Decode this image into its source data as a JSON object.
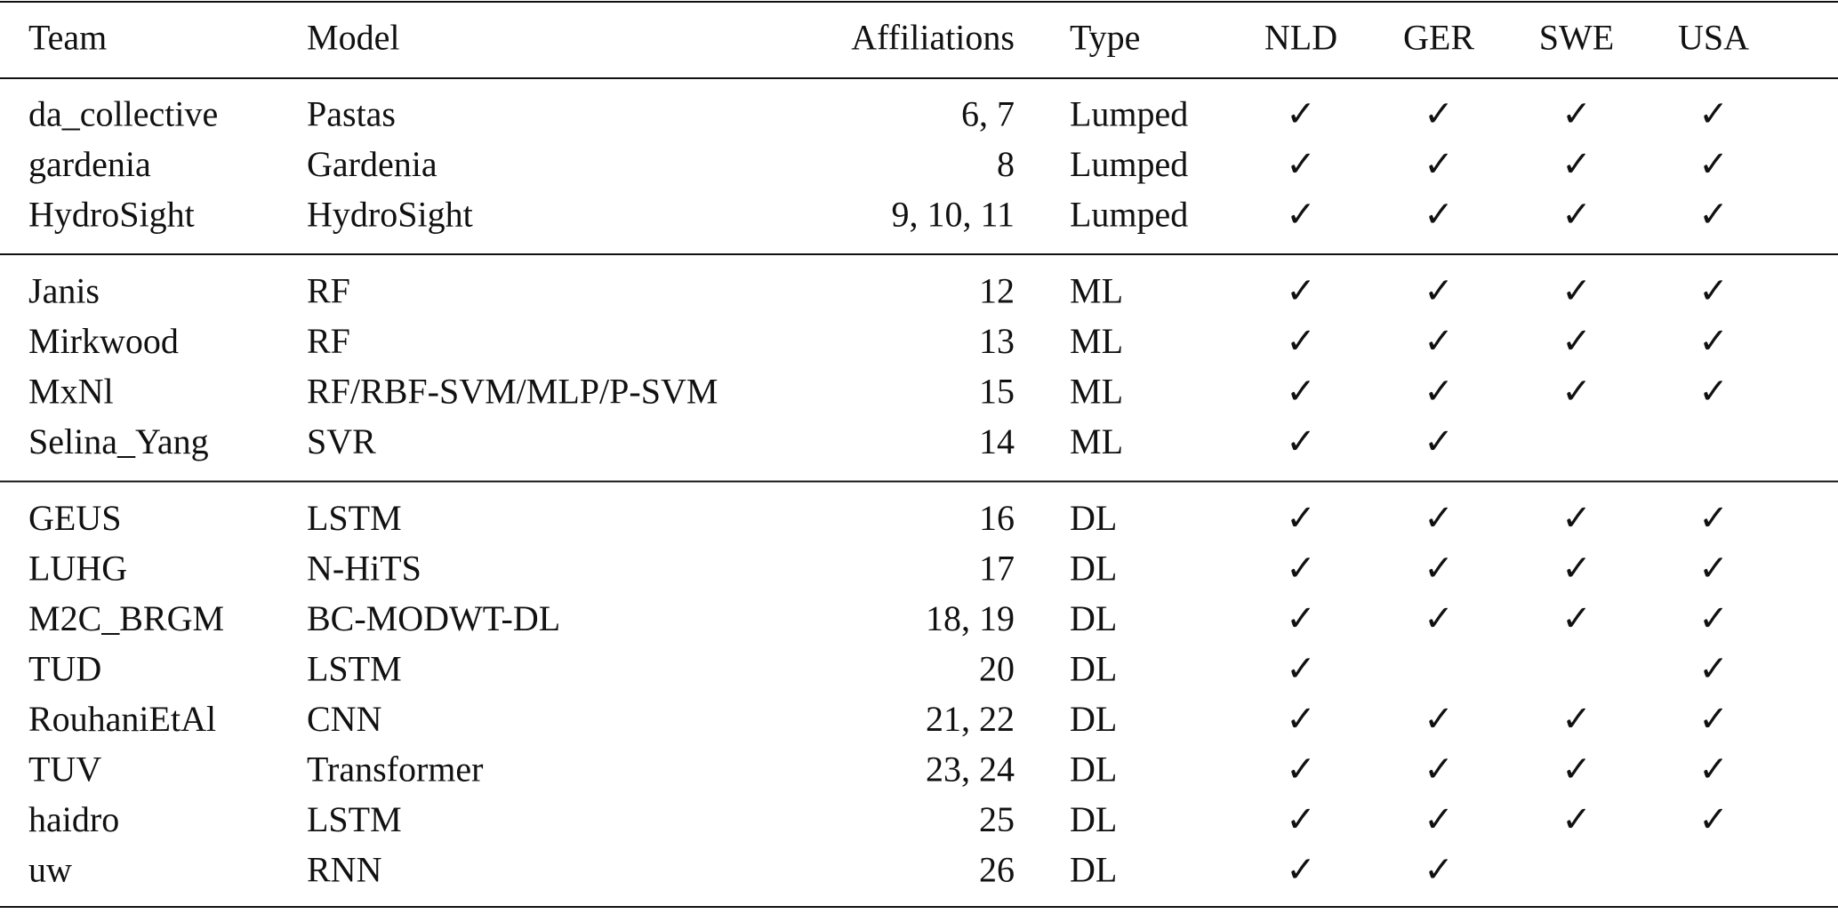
{
  "table": {
    "header": [
      "Team",
      "Model",
      "Affiliations",
      "Type",
      "NLD",
      "GER",
      "SWE",
      "USA"
    ],
    "groups": [
      [
        [
          "da_collective",
          "Pastas",
          "6, 7",
          "Lumped",
          "✓",
          "✓",
          "✓",
          "✓"
        ],
        [
          "gardenia",
          "Gardenia",
          "8",
          "Lumped",
          "✓",
          "✓",
          "✓",
          "✓"
        ],
        [
          "HydroSight",
          "HydroSight",
          "9, 10, 11",
          "Lumped",
          "✓",
          "✓",
          "✓",
          "✓"
        ]
      ],
      [
        [
          "Janis",
          "RF",
          "12",
          "ML",
          "✓",
          "✓",
          "✓",
          "✓"
        ],
        [
          "Mirkwood",
          "RF",
          "13",
          "ML",
          "✓",
          "✓",
          "✓",
          "✓"
        ],
        [
          "MxNl",
          "RF/RBF-SVM/MLP/P-SVM",
          "15",
          "ML",
          "✓",
          "✓",
          "✓",
          "✓"
        ],
        [
          "Selina_Yang",
          "SVR",
          "14",
          "ML",
          "✓",
          "✓",
          null,
          null
        ]
      ],
      [
        [
          "GEUS",
          "LSTM",
          "16",
          "DL",
          "✓",
          "✓",
          "✓",
          "✓"
        ],
        [
          "LUHG",
          "N-HiTS",
          "17",
          "DL",
          "✓",
          "✓",
          "✓",
          "✓"
        ],
        [
          "M2C_BRGM",
          "BC-MODWT-DL",
          "18, 19",
          "DL",
          "✓",
          "✓",
          "✓",
          "✓"
        ],
        [
          "TUD",
          "LSTM",
          "20",
          "DL",
          "✓",
          null,
          null,
          "✓"
        ],
        [
          "RouhaniEtAl",
          "CNN",
          "21, 22",
          "DL",
          "✓",
          "✓",
          "✓",
          "✓"
        ],
        [
          "TUV",
          "Transformer",
          "23, 24",
          "DL",
          "✓",
          "✓",
          "✓",
          "✓"
        ],
        [
          "haidro",
          "LSTM",
          "25",
          "DL",
          "✓",
          "✓",
          "✓",
          "✓"
        ],
        [
          "uw",
          "RNN",
          "26",
          "DL",
          "✓",
          "✓",
          null,
          null
        ]
      ]
    ]
  }
}
